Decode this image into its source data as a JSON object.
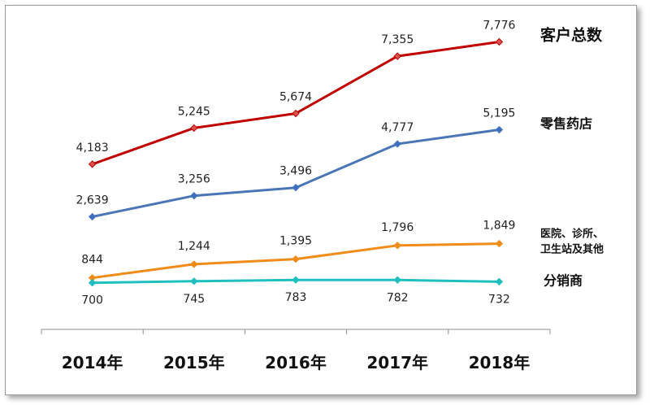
{
  "chart_data": {
    "type": "line",
    "title": "",
    "xlabel": "",
    "ylabel": "",
    "categories": [
      "2014年",
      "2015年",
      "2016年",
      "2017年",
      "2018年"
    ],
    "ylim": [
      0,
      8600
    ],
    "grid": false,
    "legend": "right",
    "series": [
      {
        "name": "客户总数",
        "values": [
          4183,
          5245,
          5674,
          7355,
          7776
        ],
        "labels": [
          "4,183",
          "5,245",
          "5,674",
          "7,355",
          "7,776"
        ],
        "color": "#c00000",
        "marker_color": "#d9534f",
        "marker": "diamond"
      },
      {
        "name": "零售药店",
        "values": [
          2639,
          3256,
          3496,
          4777,
          5195
        ],
        "labels": [
          "2,639",
          "3,256",
          "3,496",
          "4,777",
          "5,195"
        ],
        "color": "#4a76b8",
        "marker_color": "#3a6fc4",
        "marker": "diamond"
      },
      {
        "name_lines": [
          "医院、诊所、",
          "卫生站及其他"
        ],
        "values": [
          844,
          1244,
          1395,
          1796,
          1849
        ],
        "labels": [
          "844",
          "1,244",
          "1,395",
          "1,796",
          "1,849"
        ],
        "color": "#f08c1a",
        "marker_color": "#f08c1a",
        "marker": "diamond"
      },
      {
        "name": "分销商",
        "values": [
          700,
          745,
          783,
          782,
          732
        ],
        "labels": [
          "700",
          "745",
          "783",
          "782",
          "732"
        ],
        "color": "#1fbfbf",
        "marker_color": "#1fbfbf",
        "marker": "diamond"
      }
    ]
  }
}
